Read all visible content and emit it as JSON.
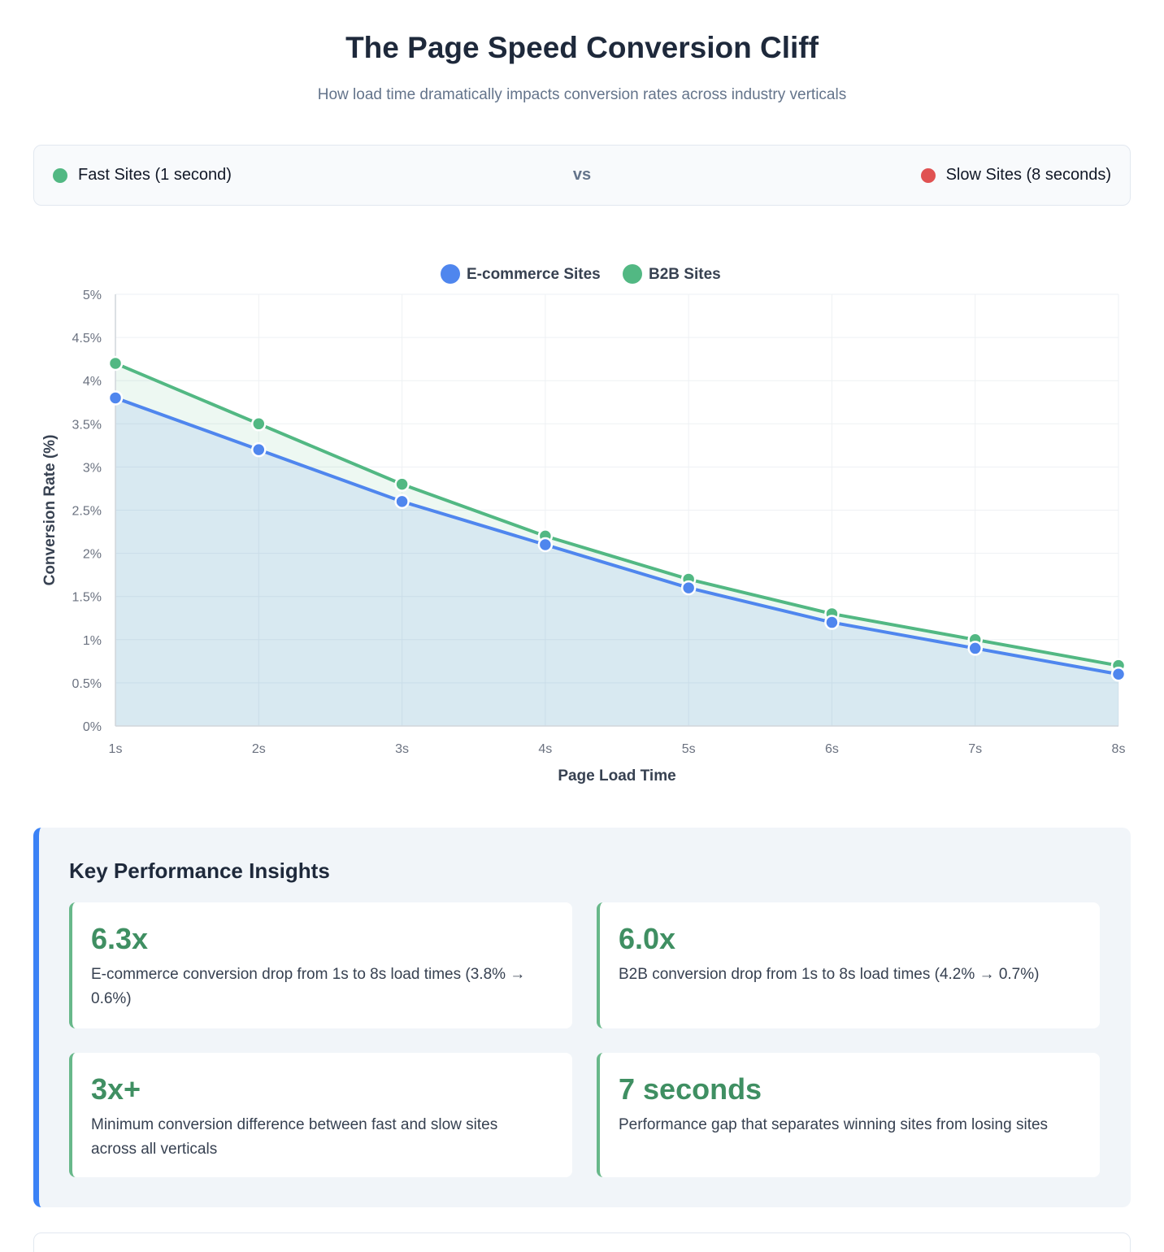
{
  "page": {
    "title": "The Page Speed Conversion Cliff",
    "subtitle": "How load time dramatically impacts conversion rates across industry verticals"
  },
  "comparison": {
    "fast_label": "Fast Sites (1 second)",
    "vs_label": "vs",
    "slow_label": "Slow Sites (8 seconds)",
    "fast_color": "#52b883",
    "slow_color": "#e05252"
  },
  "chart_data": {
    "type": "line",
    "title": "",
    "xlabel": "Page Load Time",
    "ylabel": "Conversion Rate (%)",
    "categories": [
      "1s",
      "2s",
      "3s",
      "4s",
      "5s",
      "6s",
      "7s",
      "8s"
    ],
    "ylim": [
      0,
      5
    ],
    "yticks": [
      0,
      0.5,
      1,
      1.5,
      2,
      2.5,
      3,
      3.5,
      4,
      4.5,
      5
    ],
    "ytick_labels": [
      "0%",
      "0.5%",
      "1%",
      "1.5%",
      "2%",
      "2.5%",
      "3%",
      "3.5%",
      "4%",
      "4.5%",
      "5%"
    ],
    "grid": true,
    "legend_position": "top-center",
    "area_fill": true,
    "series": [
      {
        "name": "E-commerce Sites",
        "color": "#4f86ee",
        "values": [
          3.8,
          3.2,
          2.6,
          2.1,
          1.6,
          1.2,
          0.9,
          0.6
        ]
      },
      {
        "name": "B2B Sites",
        "color": "#52b883",
        "values": [
          4.2,
          3.5,
          2.8,
          2.2,
          1.7,
          1.3,
          1.0,
          0.7
        ]
      }
    ]
  },
  "insights": {
    "title": "Key Performance Insights",
    "cards": [
      {
        "value": "6.3x",
        "description": "E-commerce conversion drop from 1s to 8s load times (3.8% → 0.6%)"
      },
      {
        "value": "6.0x",
        "description": "B2B conversion drop from 1s to 8s load times (4.2% → 0.7%)"
      },
      {
        "value": "3x+",
        "description": "Minimum conversion difference between fast and slow sites across all verticals"
      },
      {
        "value": "7 seconds",
        "description": "Performance gap that separates winning sites from losing sites"
      }
    ]
  }
}
